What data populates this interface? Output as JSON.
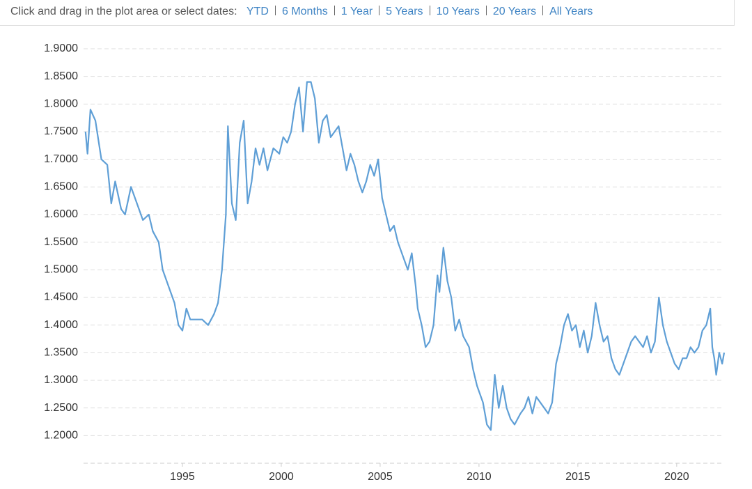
{
  "controls": {
    "prompt": "Click and drag in the plot area or select dates:",
    "ranges": [
      "YTD",
      "6 Months",
      "1 Year",
      "5 Years",
      "10 Years",
      "20 Years",
      "All Years"
    ]
  },
  "chart_data": {
    "type": "line",
    "color": "#5f9fd6",
    "grid": true,
    "xlim": [
      1990.0,
      2022.4
    ],
    "xticks": [
      1995,
      2000,
      2005,
      2010,
      2015,
      2020
    ],
    "ylim": [
      1.15,
      1.9
    ],
    "yticks": [
      {
        "value": 1.2,
        "label": "1.2000"
      },
      {
        "value": 1.25,
        "label": "1.2500"
      },
      {
        "value": 1.3,
        "label": "1.3000"
      },
      {
        "value": 1.35,
        "label": "1.3500"
      },
      {
        "value": 1.4,
        "label": "1.4000"
      },
      {
        "value": 1.45,
        "label": "1.4500"
      },
      {
        "value": 1.5,
        "label": "1.5000"
      },
      {
        "value": 1.55,
        "label": "1.5500"
      },
      {
        "value": 1.6,
        "label": "1.6000"
      },
      {
        "value": 1.65,
        "label": "1.6500"
      },
      {
        "value": 1.7,
        "label": "1.7000"
      },
      {
        "value": 1.75,
        "label": "1.7500"
      },
      {
        "value": 1.8,
        "label": "1.8000"
      },
      {
        "value": 1.85,
        "label": "1.8500"
      },
      {
        "value": 1.9,
        "label": "1.9000"
      }
    ],
    "x": [
      1990.1,
      1990.2,
      1990.35,
      1990.6,
      1990.9,
      1991.2,
      1991.4,
      1991.6,
      1991.9,
      1992.1,
      1992.4,
      1992.7,
      1993.0,
      1993.3,
      1993.5,
      1993.8,
      1994.0,
      1994.3,
      1994.6,
      1994.8,
      1995.0,
      1995.2,
      1995.4,
      1995.7,
      1996.0,
      1996.3,
      1996.6,
      1996.8,
      1997.0,
      1997.2,
      1997.3,
      1997.5,
      1997.7,
      1997.9,
      1998.1,
      1998.3,
      1998.5,
      1998.7,
      1998.9,
      1999.1,
      1999.3,
      1999.6,
      1999.9,
      2000.1,
      2000.3,
      2000.5,
      2000.7,
      2000.9,
      2001.1,
      2001.3,
      2001.5,
      2001.7,
      2001.9,
      2002.1,
      2002.3,
      2002.5,
      2002.7,
      2002.9,
      2003.1,
      2003.3,
      2003.5,
      2003.7,
      2003.9,
      2004.1,
      2004.3,
      2004.5,
      2004.7,
      2004.9,
      2005.1,
      2005.3,
      2005.5,
      2005.7,
      2005.9,
      2006.2,
      2006.4,
      2006.6,
      2006.8,
      2006.9,
      2007.1,
      2007.3,
      2007.5,
      2007.7,
      2007.9,
      2008.0,
      2008.2,
      2008.4,
      2008.6,
      2008.8,
      2009.0,
      2009.2,
      2009.5,
      2009.7,
      2009.9,
      2010.2,
      2010.4,
      2010.6,
      2010.8,
      2011.0,
      2011.2,
      2011.4,
      2011.6,
      2011.8,
      2012.1,
      2012.3,
      2012.5,
      2012.7,
      2012.9,
      2013.1,
      2013.3,
      2013.5,
      2013.7,
      2013.9,
      2014.1,
      2014.3,
      2014.5,
      2014.7,
      2014.9,
      2015.1,
      2015.3,
      2015.5,
      2015.7,
      2015.9,
      2016.1,
      2016.3,
      2016.5,
      2016.7,
      2016.9,
      2017.1,
      2017.3,
      2017.5,
      2017.7,
      2017.9,
      2018.1,
      2018.3,
      2018.5,
      2018.7,
      2018.9,
      2019.1,
      2019.3,
      2019.5,
      2019.7,
      2019.9,
      2020.1,
      2020.3,
      2020.5,
      2020.7,
      2020.9,
      2021.1,
      2021.3,
      2021.5,
      2021.7,
      2021.8,
      2021.9,
      2022.0,
      2022.15,
      2022.3,
      2022.4
    ],
    "values": [
      1.75,
      1.71,
      1.79,
      1.77,
      1.7,
      1.69,
      1.62,
      1.66,
      1.61,
      1.6,
      1.65,
      1.62,
      1.59,
      1.6,
      1.57,
      1.55,
      1.5,
      1.47,
      1.44,
      1.4,
      1.39,
      1.43,
      1.41,
      1.41,
      1.41,
      1.4,
      1.42,
      1.44,
      1.5,
      1.6,
      1.76,
      1.62,
      1.59,
      1.73,
      1.77,
      1.62,
      1.66,
      1.72,
      1.69,
      1.72,
      1.68,
      1.72,
      1.71,
      1.74,
      1.73,
      1.75,
      1.8,
      1.83,
      1.75,
      1.84,
      1.84,
      1.81,
      1.73,
      1.77,
      1.78,
      1.74,
      1.75,
      1.76,
      1.72,
      1.68,
      1.71,
      1.69,
      1.66,
      1.64,
      1.66,
      1.69,
      1.67,
      1.7,
      1.63,
      1.6,
      1.57,
      1.58,
      1.55,
      1.52,
      1.5,
      1.53,
      1.47,
      1.43,
      1.4,
      1.36,
      1.37,
      1.4,
      1.49,
      1.46,
      1.54,
      1.48,
      1.45,
      1.39,
      1.41,
      1.38,
      1.36,
      1.32,
      1.29,
      1.26,
      1.22,
      1.21,
      1.31,
      1.25,
      1.29,
      1.25,
      1.23,
      1.22,
      1.24,
      1.25,
      1.27,
      1.24,
      1.27,
      1.26,
      1.25,
      1.24,
      1.26,
      1.33,
      1.36,
      1.4,
      1.42,
      1.39,
      1.4,
      1.36,
      1.39,
      1.35,
      1.38,
      1.44,
      1.4,
      1.37,
      1.38,
      1.34,
      1.32,
      1.31,
      1.33,
      1.35,
      1.37,
      1.38,
      1.37,
      1.36,
      1.38,
      1.35,
      1.37,
      1.45,
      1.4,
      1.37,
      1.35,
      1.33,
      1.32,
      1.34,
      1.34,
      1.36,
      1.35,
      1.36,
      1.39,
      1.4,
      1.43,
      1.36,
      1.34,
      1.31,
      1.35,
      1.33,
      1.35
    ]
  }
}
